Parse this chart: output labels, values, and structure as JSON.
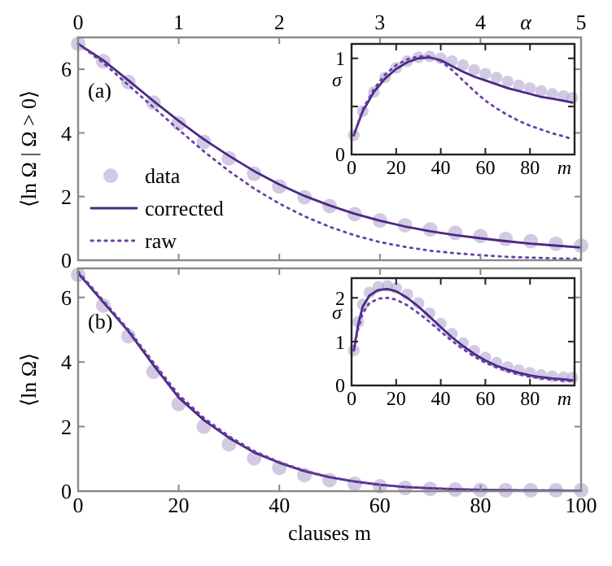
{
  "chart_data": [
    {
      "type": "line",
      "ylabel": "⟨ln Ω | Ω > 0⟩",
      "x2label": "α",
      "xlim": [
        0,
        100
      ],
      "xticks": [
        0,
        20,
        40,
        60,
        80,
        100
      ],
      "x2lim": [
        0,
        5
      ],
      "x2ticks": [
        0,
        1,
        2,
        3,
        4,
        5
      ],
      "ylim": [
        0,
        7
      ],
      "yticks": [
        0,
        2,
        4,
        6
      ],
      "tick_labels": "y",
      "legend": "left",
      "annotations": [
        "(a)"
      ],
      "x": [
        0,
        5,
        10,
        15,
        20,
        25,
        30,
        35,
        40,
        45,
        50,
        55,
        60,
        65,
        70,
        75,
        80,
        85,
        90,
        95,
        100
      ],
      "series": [
        {
          "name": "data",
          "type": "scatter",
          "marker": "circle",
          "color": "#b3a6d0",
          "values": [
            6.8,
            6.25,
            5.6,
            4.95,
            4.3,
            3.72,
            3.2,
            2.72,
            2.32,
            1.98,
            1.7,
            1.45,
            1.25,
            1.1,
            0.97,
            0.86,
            0.76,
            0.67,
            0.6,
            0.52,
            0.46
          ]
        },
        {
          "name": "corrected",
          "type": "line",
          "line_style": "solid",
          "color": "#4b2884",
          "values": [
            6.8,
            6.28,
            5.65,
            5.0,
            4.38,
            3.8,
            3.28,
            2.8,
            2.38,
            2.02,
            1.72,
            1.46,
            1.24,
            1.06,
            0.91,
            0.79,
            0.69,
            0.6,
            0.52,
            0.46,
            0.4
          ]
        },
        {
          "name": "raw",
          "type": "line",
          "line_style": "dotted",
          "color": "#6a3fa8",
          "values": [
            6.8,
            6.2,
            5.5,
            4.8,
            4.1,
            3.42,
            2.8,
            2.25,
            1.78,
            1.38,
            1.05,
            0.78,
            0.57,
            0.42,
            0.3,
            0.22,
            0.16,
            0.11,
            0.08,
            0.06,
            0.04
          ]
        }
      ]
    },
    {
      "type": "line",
      "ylabel": "σ",
      "xlabel": "m",
      "xlim": [
        0,
        100
      ],
      "xticks": [
        0,
        20,
        40,
        60,
        80
      ],
      "ylim": [
        0,
        1.15
      ],
      "yticks": [
        0,
        {
          "value": 0.5,
          "label": null
        },
        1
      ],
      "x": [
        1,
        5,
        10,
        15,
        20,
        25,
        30,
        35,
        40,
        45,
        50,
        55,
        60,
        65,
        70,
        75,
        80,
        85,
        90,
        95,
        99
      ],
      "series": [
        {
          "type": "scatter",
          "marker": "circle",
          "color": "#b3a6d0",
          "values": [
            0.2,
            0.45,
            0.65,
            0.8,
            0.9,
            0.97,
            1.01,
            1.02,
            1.0,
            0.97,
            0.93,
            0.88,
            0.84,
            0.8,
            0.76,
            0.72,
            0.69,
            0.66,
            0.63,
            0.61,
            0.59
          ]
        },
        {
          "type": "line",
          "line_style": "solid",
          "color": "#4b2884",
          "values": [
            0.2,
            0.45,
            0.65,
            0.79,
            0.89,
            0.96,
            1.0,
            1.01,
            0.98,
            0.92,
            0.86,
            0.81,
            0.77,
            0.73,
            0.69,
            0.66,
            0.63,
            0.6,
            0.58,
            0.56,
            0.54
          ]
        },
        {
          "type": "line",
          "line_style": "dotted",
          "color": "#6a3fa8",
          "values": [
            0.2,
            0.47,
            0.68,
            0.83,
            0.93,
            0.99,
            1.02,
            1.02,
            0.97,
            0.88,
            0.77,
            0.66,
            0.56,
            0.48,
            0.41,
            0.35,
            0.3,
            0.26,
            0.22,
            0.19,
            0.16
          ]
        }
      ]
    },
    {
      "type": "line",
      "ylabel": "⟨ln Ω⟩",
      "xlabel": "clauses m",
      "xlim": [
        0,
        100
      ],
      "xticks": [
        0,
        20,
        40,
        60,
        80,
        100
      ],
      "ylim": [
        0,
        6.9
      ],
      "yticks": [
        0,
        2,
        4,
        6
      ],
      "annotations": [
        "(b)"
      ],
      "x": [
        0,
        5,
        10,
        15,
        20,
        25,
        30,
        35,
        40,
        45,
        50,
        55,
        60,
        65,
        70,
        75,
        80,
        85,
        90,
        95,
        100
      ],
      "series": [
        {
          "type": "scatter",
          "marker": "circle",
          "color": "#b3a6d0",
          "values": [
            6.7,
            5.75,
            4.8,
            3.7,
            2.7,
            2.0,
            1.45,
            1.02,
            0.72,
            0.5,
            0.34,
            0.23,
            0.15,
            0.1,
            0.07,
            0.05,
            0.04,
            0.03,
            0.03,
            0.03,
            0.03
          ]
        },
        {
          "type": "line",
          "line_style": "solid",
          "color": "#4b2884",
          "values": [
            6.75,
            5.85,
            4.95,
            3.9,
            2.9,
            2.2,
            1.65,
            1.2,
            0.88,
            0.62,
            0.43,
            0.3,
            0.2,
            0.13,
            0.09,
            0.06,
            0.04,
            0.03,
            0.02,
            0.02,
            0.01
          ]
        },
        {
          "type": "line",
          "line_style": "dotted",
          "color": "#6a3fa8",
          "values": [
            6.8,
            5.9,
            5.0,
            3.98,
            2.98,
            2.27,
            1.7,
            1.24,
            0.9,
            0.64,
            0.44,
            0.3,
            0.2,
            0.13,
            0.09,
            0.06,
            0.04,
            0.03,
            0.02,
            0.02,
            0.01
          ]
        }
      ]
    },
    {
      "type": "line",
      "ylabel": "σ",
      "xlabel": "m",
      "xlim": [
        0,
        100
      ],
      "xticks": [
        0,
        20,
        40,
        60,
        80
      ],
      "ylim": [
        0,
        2.45
      ],
      "yticks": [
        0,
        1,
        2
      ],
      "x": [
        1,
        3,
        5,
        8,
        12,
        16,
        20,
        25,
        30,
        35,
        40,
        45,
        50,
        55,
        60,
        65,
        70,
        75,
        80,
        85,
        90,
        95,
        99
      ],
      "series": [
        {
          "type": "scatter",
          "marker": "circle",
          "color": "#b3a6d0",
          "values": [
            0.8,
            1.45,
            1.85,
            2.12,
            2.25,
            2.27,
            2.22,
            2.08,
            1.88,
            1.65,
            1.41,
            1.18,
            0.97,
            0.79,
            0.64,
            0.52,
            0.42,
            0.35,
            0.29,
            0.24,
            0.21,
            0.19,
            0.18
          ]
        },
        {
          "type": "line",
          "line_style": "solid",
          "color": "#4b2884",
          "values": [
            0.8,
            1.4,
            1.8,
            2.05,
            2.18,
            2.2,
            2.15,
            2.0,
            1.8,
            1.57,
            1.33,
            1.1,
            0.9,
            0.72,
            0.57,
            0.45,
            0.36,
            0.29,
            0.23,
            0.19,
            0.16,
            0.14,
            0.12
          ]
        },
        {
          "type": "line",
          "line_style": "dotted",
          "color": "#6a3fa8",
          "values": [
            0.8,
            1.3,
            1.65,
            1.88,
            1.98,
            2.0,
            1.96,
            1.83,
            1.65,
            1.45,
            1.23,
            1.02,
            0.83,
            0.66,
            0.52,
            0.41,
            0.32,
            0.25,
            0.2,
            0.16,
            0.13,
            0.11,
            0.1
          ]
        }
      ]
    }
  ]
}
